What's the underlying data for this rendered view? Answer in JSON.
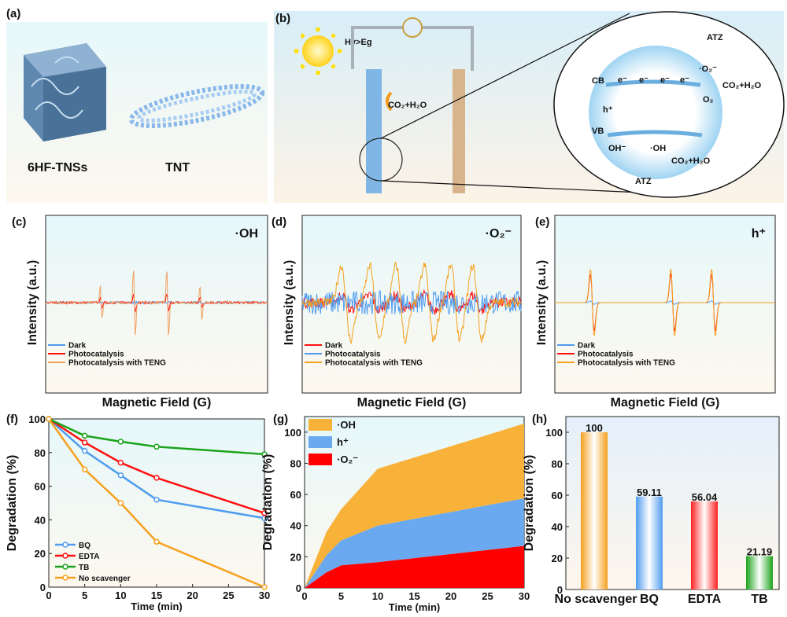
{
  "panels": {
    "a": {
      "label": "(a)",
      "items": [
        "6HF-TNSs",
        "TNT"
      ]
    },
    "b": {
      "label": "(b)",
      "light": "Hv>Eg",
      "products": "CO₂+H₂O",
      "cb": "CB",
      "vb": "VB",
      "electron": "e⁻",
      "hole": "h⁺",
      "o2": "O₂",
      "o2_radical": "·O₂⁻",
      "oh_minus": "OH⁻",
      "oh_radical": "·OH",
      "atz": "ATZ"
    },
    "c": {
      "label": "(c)"
    },
    "d": {
      "label": "(d)"
    },
    "e": {
      "label": "(e)"
    },
    "f": {
      "label": "(f)"
    },
    "g": {
      "label": "(g)"
    },
    "h": {
      "label": "(h)"
    }
  },
  "colors": {
    "blue": "#4f9cf0",
    "red": "#ff1010",
    "orange": "#f5a01e",
    "light_orange": "#f0a060",
    "green": "#1aa31a"
  },
  "chart_data": [
    {
      "panel": "c",
      "type": "line",
      "title": "·OH",
      "xlabel": "Magnetic Field (G)",
      "ylabel": "Intensity (a.u.)",
      "series": [
        {
          "name": "Dark",
          "color": "#4f9cf0"
        },
        {
          "name": "Photocatalysis",
          "color": "#ff1010"
        },
        {
          "name": "Photocatalysis with TENG",
          "color": "#f0a060"
        }
      ],
      "legend": "bottom-left"
    },
    {
      "panel": "d",
      "type": "line",
      "title": "·O₂⁻",
      "xlabel": "Magnetic Field (G)",
      "ylabel": "Intensity (a.u.)",
      "series": [
        {
          "name": "Dark",
          "color": "#ff1010"
        },
        {
          "name": "Photocatalysis",
          "color": "#4f9cf0"
        },
        {
          "name": "Photocatalysis with TENG",
          "color": "#f5a01e"
        }
      ],
      "legend": "bottom-left"
    },
    {
      "panel": "e",
      "type": "line",
      "title": "h⁺",
      "xlabel": "Magnetic Field (G)",
      "ylabel": "Intensity (a.u.)",
      "series": [
        {
          "name": "Dark",
          "color": "#4f9cf0"
        },
        {
          "name": "Photocatalysis",
          "color": "#ff1010"
        },
        {
          "name": "Photocatalysis with TENG",
          "color": "#f5a01e"
        }
      ],
      "legend": "bottom-left"
    },
    {
      "panel": "f",
      "type": "line",
      "xlabel": "Time (min)",
      "ylabel": "Degradation  (%)",
      "x": [
        0,
        5,
        10,
        15,
        30
      ],
      "xlim": [
        0,
        30
      ],
      "ylim": [
        0,
        100
      ],
      "xticks": [
        0,
        5,
        10,
        15,
        20,
        25,
        30
      ],
      "yticks": [
        0,
        20,
        40,
        60,
        80,
        100
      ],
      "series": [
        {
          "name": "BQ",
          "color": "#4f9cf0",
          "values": [
            100,
            81,
            66.5,
            52,
            41
          ]
        },
        {
          "name": "EDTA",
          "color": "#ff1010",
          "values": [
            100,
            86,
            74,
            65,
            44
          ]
        },
        {
          "name": "TB",
          "color": "#1aa31a",
          "values": [
            100,
            90,
            86.5,
            83.5,
            79
          ]
        },
        {
          "name": "No scavenger",
          "color": "#f5a01e",
          "values": [
            100,
            70,
            50,
            27,
            0
          ]
        }
      ],
      "legend": "bottom-left"
    },
    {
      "panel": "g",
      "type": "area",
      "stacked": true,
      "xlabel": "Time (min)",
      "ylabel": "Degradation (%)",
      "x": [
        0,
        3,
        5,
        10,
        30
      ],
      "xlim": [
        0,
        30
      ],
      "ylim": [
        0,
        110
      ],
      "xticks": [
        0,
        5,
        10,
        15,
        20,
        25,
        30
      ],
      "yticks": [
        0,
        20,
        40,
        60,
        80,
        100
      ],
      "series": [
        {
          "name": "·O₂⁻",
          "color": "#ff0000",
          "values": [
            0,
            10,
            14.5,
            16.5,
            27
          ]
        },
        {
          "name": "h⁺",
          "color": "#6aa8f0",
          "values": [
            0,
            11,
            16,
            23.5,
            30.5
          ]
        },
        {
          "name": "·OH",
          "color": "#f8b23a",
          "values": [
            0,
            15,
            20,
            36.5,
            48
          ]
        }
      ],
      "legend_order": [
        "·OH",
        "h⁺",
        "·O₂⁻"
      ],
      "legend": "top-left"
    },
    {
      "panel": "h",
      "type": "bar",
      "ylabel": "Degradation (%)",
      "categories": [
        "No scavenger",
        "BQ",
        "EDTA",
        "TB"
      ],
      "values": [
        100,
        59.11,
        56.04,
        21.19
      ],
      "data_labels": [
        "100",
        "59.11",
        "56.04",
        "21.19"
      ],
      "colors": [
        "#f5a01e",
        "#4f9cf0",
        "#ff2020",
        "#1aa31a"
      ],
      "ylim": [
        0,
        110
      ],
      "yticks": [
        0,
        20,
        40,
        60,
        80,
        100
      ]
    }
  ]
}
